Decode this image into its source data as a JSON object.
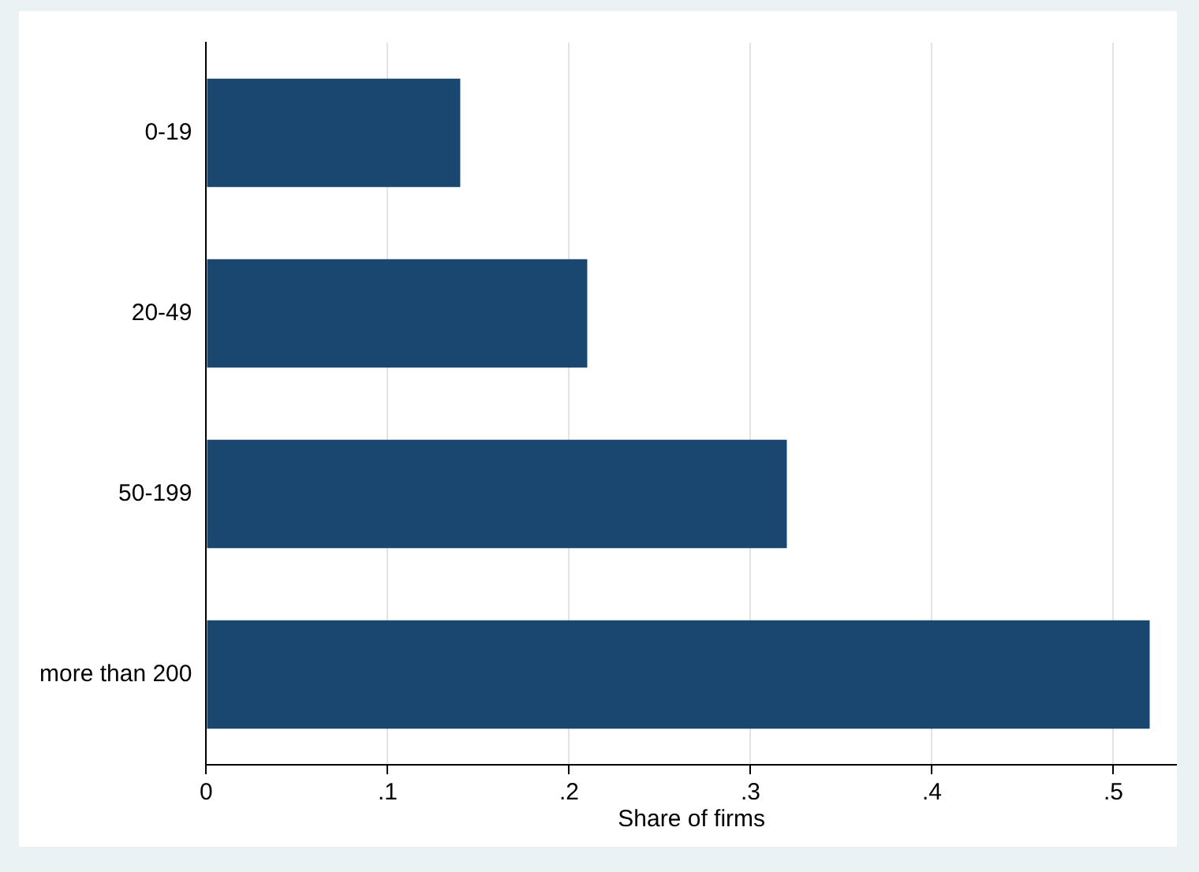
{
  "chart_data": {
    "type": "bar",
    "orientation": "horizontal",
    "xlabel": "Share of firms",
    "categories": [
      "0-19",
      "20-49",
      "50-199",
      "more than 200"
    ],
    "values": [
      0.14,
      0.21,
      0.32,
      0.52
    ],
    "color": "#1a476f",
    "xlim": [
      0,
      0.535
    ],
    "xticks": [
      0,
      {
        "value": 0.1,
        "label": ".1"
      },
      {
        "value": 0.2,
        "label": ".2"
      },
      {
        "value": 0.3,
        "label": ".3"
      },
      {
        "value": 0.4,
        "label": ".4"
      },
      {
        "value": 0.5,
        "label": ".5"
      }
    ],
    "grid": "x",
    "legend": false
  }
}
